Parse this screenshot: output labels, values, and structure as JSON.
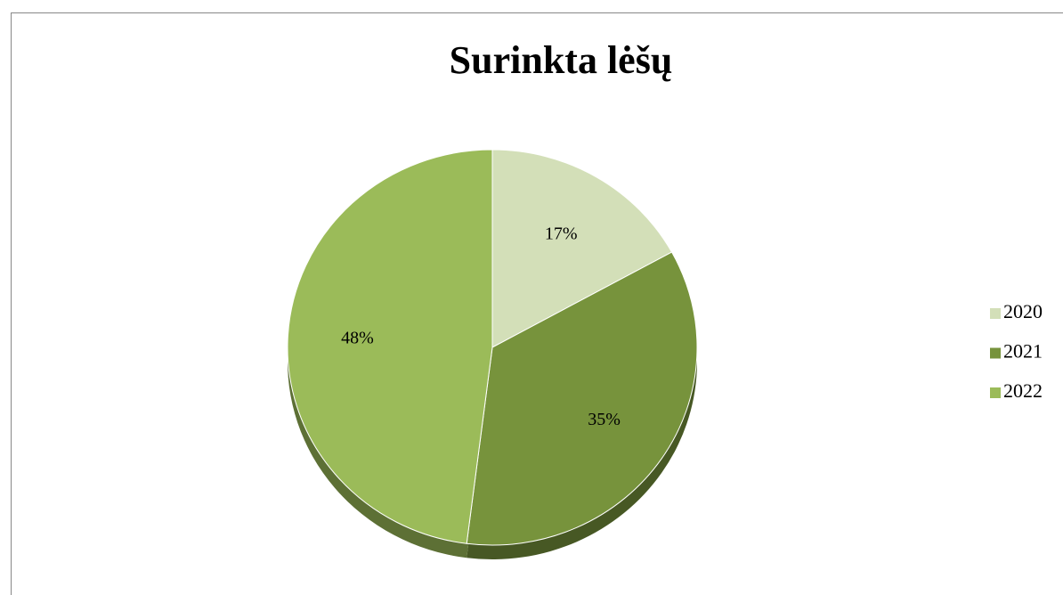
{
  "chart_data": {
    "type": "pie",
    "title": "Surinkta lėšų",
    "categories": [
      "2020",
      "2021",
      "2022"
    ],
    "values": [
      17,
      35,
      48
    ],
    "value_labels": [
      "17%",
      "35%",
      "48%"
    ],
    "colors": [
      "#d3dfb8",
      "#77933c",
      "#9bbb59"
    ],
    "legend": "right"
  }
}
